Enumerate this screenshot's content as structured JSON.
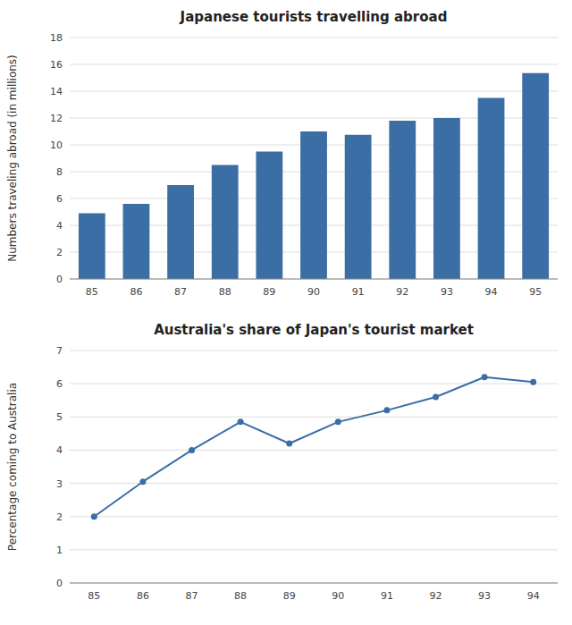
{
  "chart_data": [
    {
      "type": "bar",
      "title": "Japanese tourists travelling abroad",
      "ylabel": "Numbers traveling abroad (in millions)",
      "categories": [
        "85",
        "86",
        "87",
        "88",
        "89",
        "90",
        "91",
        "92",
        "93",
        "94",
        "95"
      ],
      "values": [
        4.9,
        5.6,
        7.0,
        8.5,
        9.5,
        11.0,
        10.75,
        11.8,
        12.0,
        13.5,
        15.35
      ],
      "color": "#3A6EA5",
      "ylim": [
        0,
        18
      ],
      "yticks": [
        0,
        2,
        4,
        6,
        8,
        10,
        12,
        14,
        16,
        18
      ],
      "grid": true
    },
    {
      "type": "line",
      "title": "Australia's share of Japan's tourist market",
      "ylabel": "Percentage coming to Australia",
      "categories": [
        "85",
        "86",
        "87",
        "88",
        "89",
        "90",
        "91",
        "92",
        "93",
        "94"
      ],
      "values": [
        2.0,
        3.05,
        4.0,
        4.85,
        4.2,
        4.85,
        5.2,
        5.6,
        6.2,
        6.05
      ],
      "color": "#3A6EA5",
      "marker": "circle",
      "ylim": [
        0,
        7
      ],
      "yticks": [
        0,
        1,
        2,
        3,
        4,
        5,
        6,
        7
      ],
      "grid": true
    }
  ]
}
